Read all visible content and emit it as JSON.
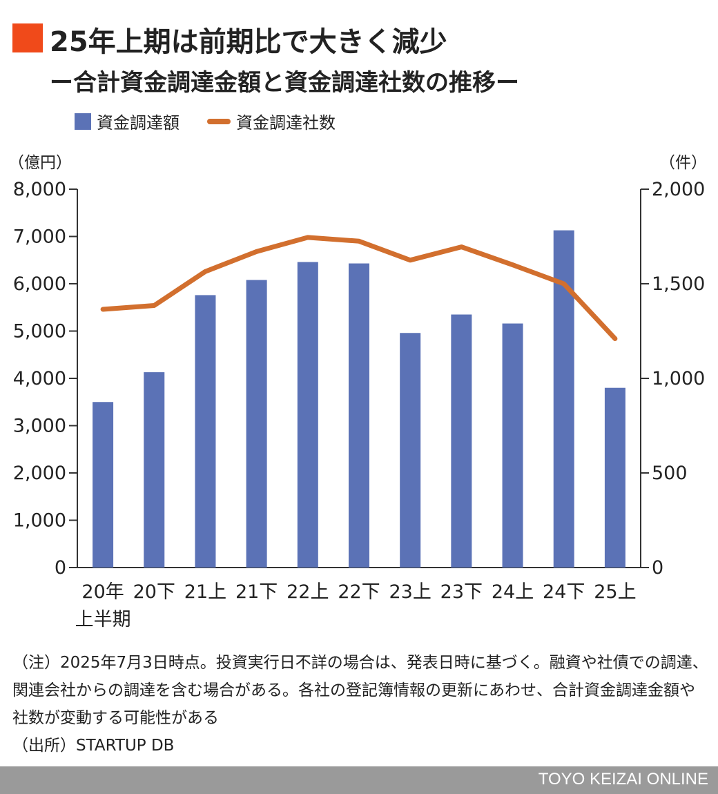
{
  "header": {
    "title": "25年上期は前期比で大きく減少",
    "subtitle": "ー合計資金調達金額と資金調達社数の推移ー"
  },
  "colors": {
    "accent": "#f04a1a",
    "bar": "#5b72b6",
    "line": "#d26f2e"
  },
  "chart_data": {
    "type": "bar",
    "categories": [
      "20年上半期",
      "20下",
      "21上",
      "21下",
      "22上",
      "22下",
      "23上",
      "23下",
      "24上",
      "24下",
      "25上"
    ],
    "category_lines": [
      [
        "20年",
        "上半期"
      ],
      [
        "20下"
      ],
      [
        "21上"
      ],
      [
        "21下"
      ],
      [
        "22上"
      ],
      [
        "22下"
      ],
      [
        "23上"
      ],
      [
        "23下"
      ],
      [
        "24上"
      ],
      [
        "24下"
      ],
      [
        "25上"
      ]
    ],
    "series": [
      {
        "name": "資金調達額",
        "type": "bar",
        "axis": "left",
        "values": [
          3500,
          4130,
          5760,
          6080,
          6460,
          6430,
          4960,
          5350,
          5160,
          7130,
          3800
        ]
      },
      {
        "name": "資金調達社数",
        "type": "line",
        "axis": "right",
        "values": [
          1365,
          1385,
          1565,
          1670,
          1745,
          1725,
          1625,
          1695,
          1600,
          1500,
          1210
        ]
      }
    ],
    "ylabel_left": "（億円）",
    "ylabel_right": "（件）",
    "ylim_left": [
      0,
      8000
    ],
    "ylim_right": [
      0,
      2000
    ],
    "yticks_left": [
      "0",
      "1,000",
      "2,000",
      "3,000",
      "4,000",
      "5,000",
      "6,000",
      "7,000",
      "8,000"
    ],
    "yticks_right": [
      "0",
      "500",
      "1,000",
      "1,500",
      "2,000"
    ],
    "legend_position": "top-left",
    "grid": false
  },
  "notes": [
    "（注）2025年7月3日時点。投資実行日不詳の場合は、発表日時に基づく。融資や社債での調達、関連会社からの調達を含む場合がある。各社の登記簿情報の更新にあわせ、合計資金調達金額や社数が変動する可能性がある",
    "（出所）STARTUP DB"
  ],
  "footer": {
    "brand": "TOYO KEIZAI ONLINE"
  }
}
